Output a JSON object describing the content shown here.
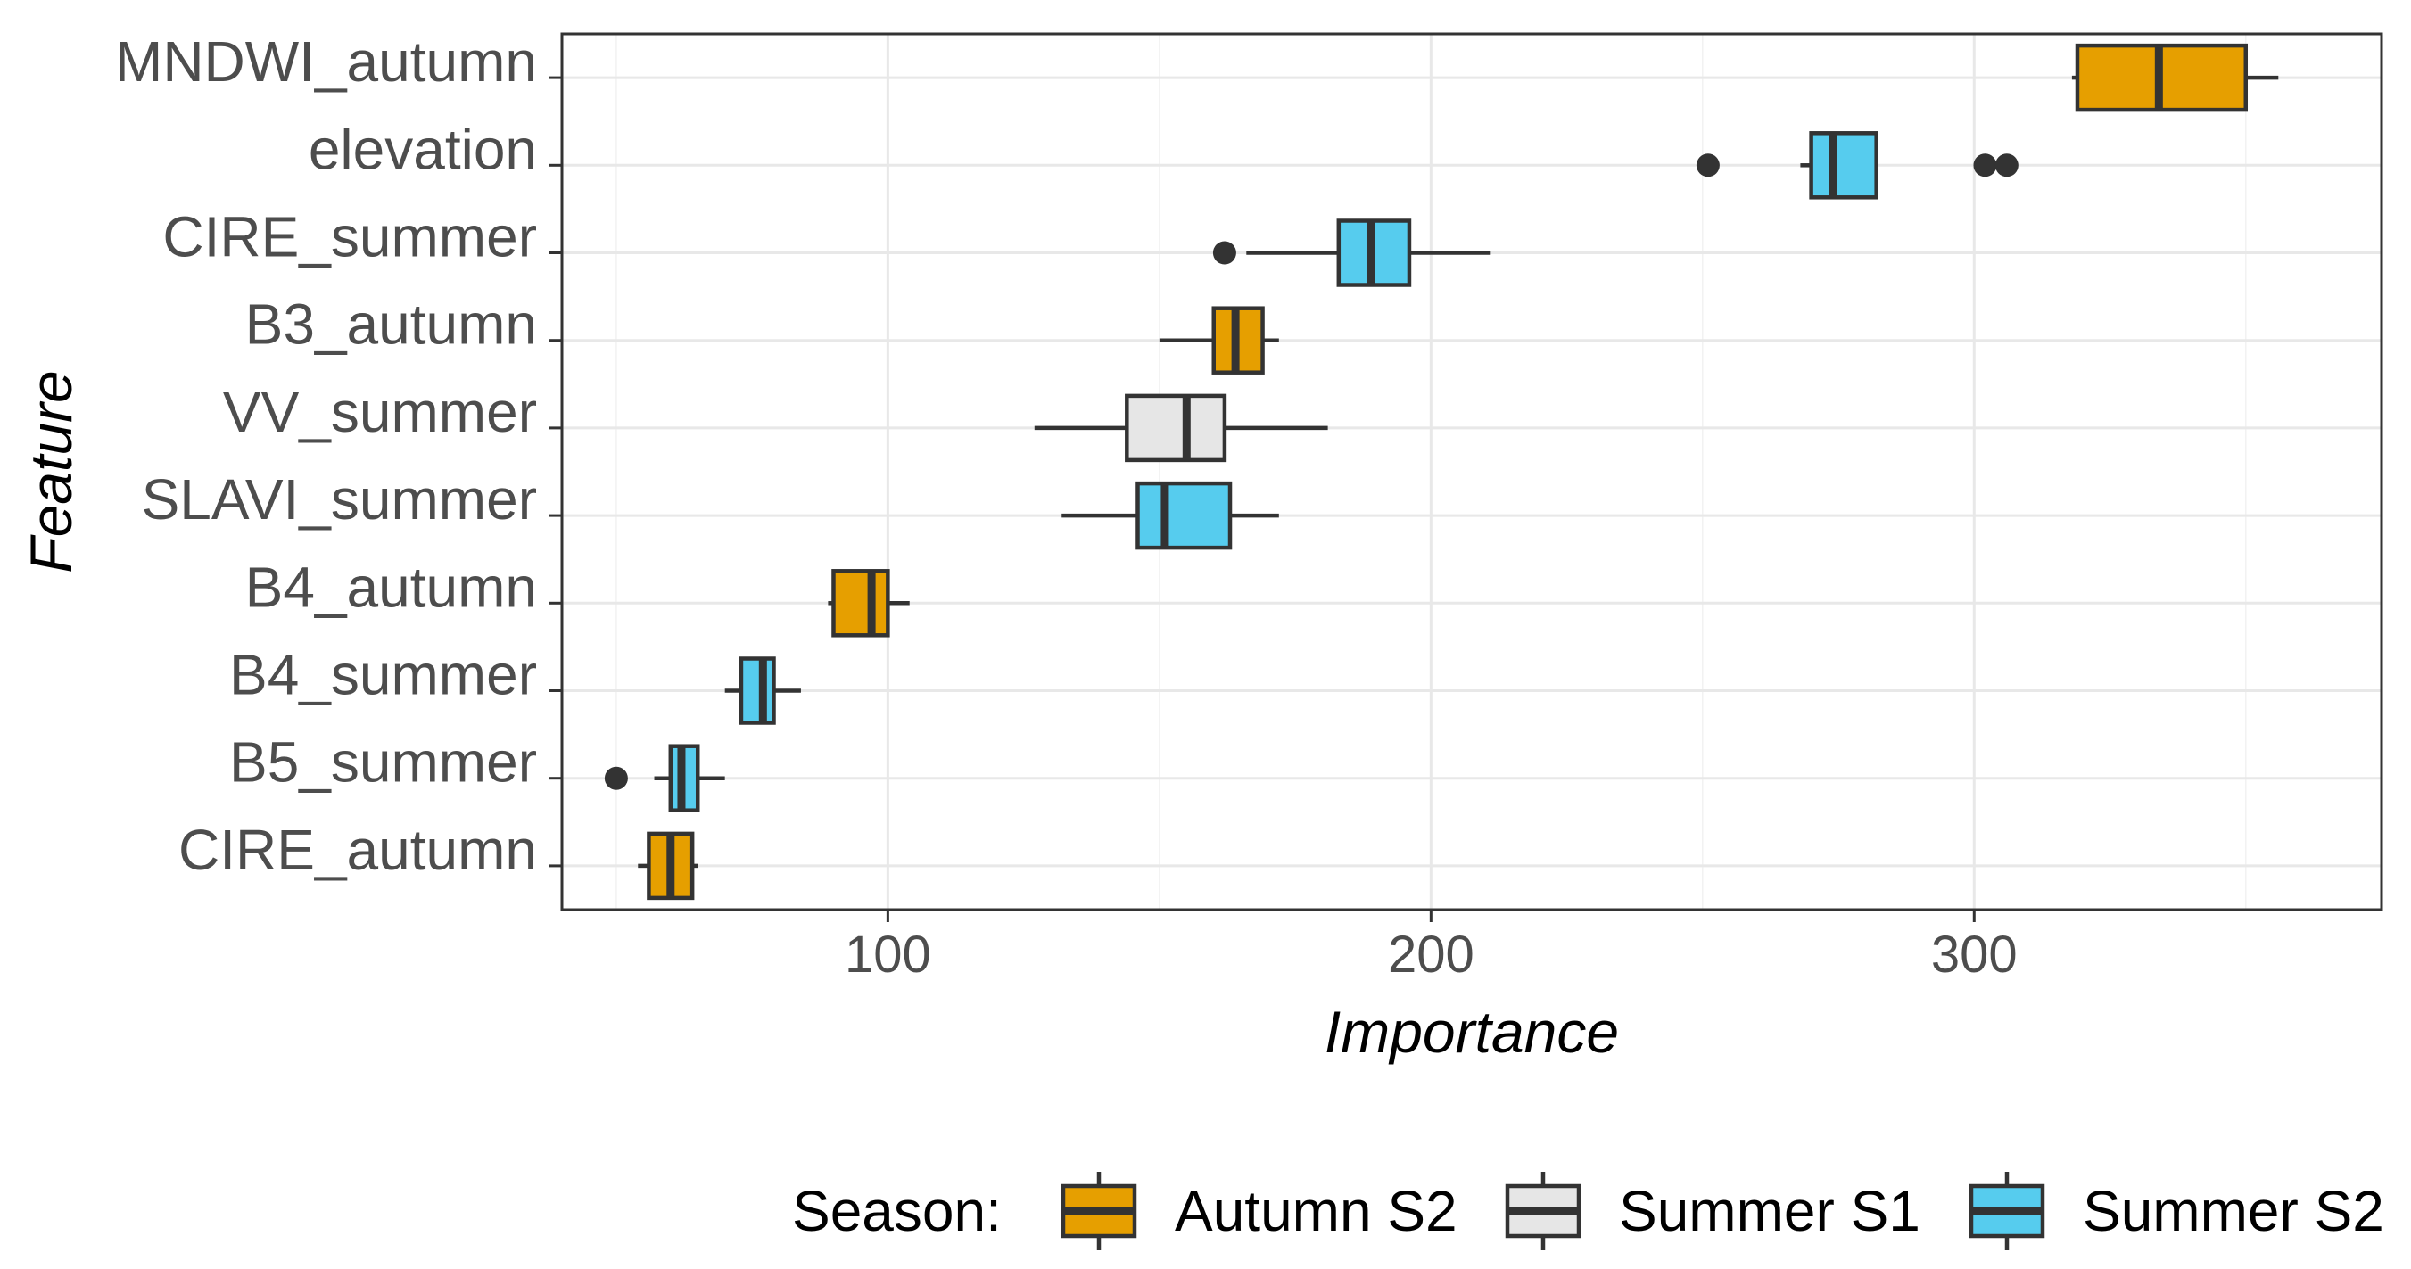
{
  "chart_data": {
    "type": "boxplot",
    "orientation": "horizontal",
    "title": "",
    "xlabel": "Importance",
    "ylabel": "Feature",
    "xlim": [
      40,
      375
    ],
    "xticks": [
      100,
      200,
      300
    ],
    "grid": true,
    "legend": {
      "title": "Season:",
      "placement": "bottom",
      "entries": [
        {
          "name": "Autumn S2",
          "color": "#E69F00"
        },
        {
          "name": "Summer S1",
          "color": "#E6E6E6"
        },
        {
          "name": "Summer S2",
          "color": "#56CCEE"
        }
      ]
    },
    "features": [
      {
        "name": "MNDWI_autumn",
        "season": "Autumn S2",
        "min": 318,
        "q1": 319,
        "median": 334,
        "q3": 350,
        "max": 356,
        "outliers": []
      },
      {
        "name": "elevation",
        "season": "Summer S2",
        "min": 268,
        "q1": 270,
        "median": 274,
        "q3": 282,
        "max": 282,
        "outliers": [
          251,
          302,
          306
        ]
      },
      {
        "name": "CIRE_summer",
        "season": "Summer S2",
        "min": 166,
        "q1": 183,
        "median": 189,
        "q3": 196,
        "max": 211,
        "outliers": [
          162
        ]
      },
      {
        "name": "B3_autumn",
        "season": "Autumn S2",
        "min": 150,
        "q1": 160,
        "median": 164,
        "q3": 169,
        "max": 172,
        "outliers": []
      },
      {
        "name": "VV_summer",
        "season": "Summer S1",
        "min": 127,
        "q1": 144,
        "median": 155,
        "q3": 162,
        "max": 181,
        "outliers": []
      },
      {
        "name": "SLAVI_summer",
        "season": "Summer S2",
        "min": 132,
        "q1": 146,
        "median": 151,
        "q3": 163,
        "max": 172,
        "outliers": []
      },
      {
        "name": "B4_autumn",
        "season": "Autumn S2",
        "min": 89,
        "q1": 90,
        "median": 97,
        "q3": 100,
        "max": 104,
        "outliers": []
      },
      {
        "name": "B4_summer",
        "season": "Summer S2",
        "min": 70,
        "q1": 73,
        "median": 77,
        "q3": 79,
        "max": 84,
        "outliers": []
      },
      {
        "name": "B5_summer",
        "season": "Summer S2",
        "min": 57,
        "q1": 60,
        "median": 62,
        "q3": 65,
        "max": 70,
        "outliers": [
          50
        ]
      },
      {
        "name": "CIRE_autumn",
        "season": "Autumn S2",
        "min": 54,
        "q1": 56,
        "median": 60,
        "q3": 64,
        "max": 65,
        "outliers": []
      }
    ]
  }
}
